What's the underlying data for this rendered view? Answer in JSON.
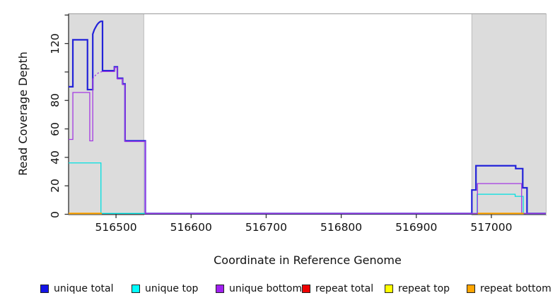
{
  "chart_data": {
    "type": "line",
    "title": "",
    "xlabel": "Coordinate in Reference Genome",
    "ylabel": "Read Coverage Depth",
    "xlim": [
      516436.8,
      517072.6
    ],
    "ylim": [
      0,
      140.9
    ],
    "grid": false,
    "legend_position": "bottom",
    "background_color": "#ffffff",
    "repeat_region_color": "#dcdcdc",
    "repeat_region_border": "#bdbdbd",
    "plot_top_border_color": "#a8a8a8",
    "axis_color": "#333333",
    "repeat_regions": [
      {
        "x1": 516437,
        "x2": 516537
      },
      {
        "x1": 516974,
        "x2": 517073
      }
    ],
    "x_ticks": [
      {
        "v": 516500,
        "label": "516500"
      },
      {
        "v": 516600,
        "label": "516600"
      },
      {
        "v": 516700,
        "label": "516700"
      },
      {
        "v": 516800,
        "label": "516800"
      },
      {
        "v": 516900,
        "label": "516900"
      },
      {
        "v": 517000,
        "label": "517000"
      }
    ],
    "y_ticks": [
      {
        "v": 0,
        "label": "0"
      },
      {
        "v": 20,
        "label": "20"
      },
      {
        "v": 40,
        "label": "40"
      },
      {
        "v": 60,
        "label": "60"
      },
      {
        "v": 80,
        "label": "80"
      },
      {
        "v": 100,
        "label": ""
      },
      {
        "v": 120,
        "label": "120"
      },
      {
        "v": 140,
        "label": ""
      }
    ],
    "series": [
      {
        "name": "unique total",
        "color": "#2323d9",
        "dashed_segment": -1,
        "segments": [
          [
            [
              516436.8,
              89
            ],
            [
              516442.5,
              89
            ],
            [
              516442.5,
              122
            ],
            [
              516462,
              122
            ],
            [
              516462,
              87
            ],
            [
              516469,
              87
            ],
            [
              516469,
              126
            ],
            [
              516471,
              129
            ],
            [
              516473,
              131
            ],
            [
              516475,
              132.8
            ],
            [
              516477,
              134
            ],
            [
              516479,
              134.8
            ],
            [
              516480,
              135
            ],
            [
              516482,
              135
            ],
            [
              516482,
              100.3
            ],
            [
              516497.8,
              100.3
            ],
            [
              516497.8,
              103
            ],
            [
              516501.8,
              103
            ],
            [
              516501.8,
              95
            ],
            [
              516508.8,
              95
            ],
            [
              516508.8,
              91
            ],
            [
              516512,
              91
            ],
            [
              516512,
              51
            ],
            [
              516539,
              51
            ],
            [
              516539,
              0
            ],
            [
              516974,
              0
            ],
            [
              516974,
              16.5
            ],
            [
              516979.5,
              16.5
            ],
            [
              516979.5,
              33.5
            ],
            [
              517032.4,
              33.5
            ],
            [
              517032.4,
              31.5
            ],
            [
              517041.8,
              31.5
            ],
            [
              517041.8,
              18
            ],
            [
              517047.5,
              18
            ],
            [
              517047.5,
              0
            ],
            [
              517072.6,
              0
            ]
          ]
        ]
      },
      {
        "name": "unique top",
        "color": "#00e0e0",
        "dashed_segment": -1,
        "segments": [
          [
            [
              516436.8,
              35.5
            ],
            [
              516479.9,
              35.5
            ],
            [
              516479.9,
              0
            ],
            [
              516981,
              0
            ],
            [
              516981,
              13.5
            ],
            [
              517031.7,
              13.5
            ],
            [
              517031.7,
              12
            ],
            [
              517042.5,
              12
            ],
            [
              517042.5,
              0
            ],
            [
              517072.6,
              0
            ]
          ]
        ]
      },
      {
        "name": "unique bottom",
        "color": "#a43ae2",
        "dashed_segment": 1,
        "segments": [
          [
            [
              516436.8,
              52
            ],
            [
              516442.5,
              52
            ],
            [
              516442.5,
              85
            ],
            [
              516465,
              85
            ],
            [
              516465,
              51
            ],
            [
              516469,
              51
            ],
            [
              516469,
              94.5
            ]
          ],
          [
            [
              516469,
              94.5
            ],
            [
              516471,
              96
            ],
            [
              516473,
              97.3
            ],
            [
              516475,
              98.2
            ],
            [
              516477,
              98.9
            ],
            [
              516479.5,
              99.4
            ],
            [
              516482,
              99.7
            ]
          ],
          [
            [
              516482,
              99.7
            ],
            [
              516497.8,
              99.7
            ],
            [
              516497.8,
              102.5
            ],
            [
              516501.8,
              102.5
            ],
            [
              516501.8,
              94.5
            ],
            [
              516508.8,
              94.5
            ],
            [
              516508.8,
              90.5
            ],
            [
              516512,
              90.5
            ],
            [
              516512,
              50.5
            ],
            [
              516539,
              50.5
            ],
            [
              516539,
              0
            ],
            [
              516981.5,
              0
            ],
            [
              516981.5,
              21
            ],
            [
              517040.3,
              21
            ],
            [
              517040.3,
              0
            ],
            [
              517072.6,
              0
            ]
          ]
        ]
      },
      {
        "name": "repeat total",
        "color": "#ee0000",
        "dashed_segment": -1,
        "segments": [
          [
            [
              516436.8,
              0
            ],
            [
              516481,
              0
            ]
          ],
          [
            [
              516982,
              0
            ],
            [
              517043,
              0
            ]
          ]
        ]
      },
      {
        "name": "repeat top",
        "color": "#ffff00",
        "dashed_segment": -1,
        "segments": [
          [
            [
              516436.8,
              0
            ],
            [
              516481,
              0
            ]
          ],
          [
            [
              516982,
              0
            ],
            [
              517043,
              0
            ]
          ]
        ]
      },
      {
        "name": "repeat bottom",
        "color": "#ffa500",
        "dashed_segment": -1,
        "segments": [
          [
            [
              516436.8,
              0
            ],
            [
              516481,
              0
            ]
          ],
          [
            [
              516982,
              0
            ],
            [
              517043,
              0
            ]
          ]
        ]
      }
    ],
    "legend": [
      {
        "label": "unique total",
        "color": "#1414e8",
        "x": 57
      },
      {
        "label": "unique top",
        "color": "#00ffff",
        "x": 186
      },
      {
        "label": "unique bottom",
        "color": "#a020f0",
        "x": 305
      },
      {
        "label": "repeat total",
        "color": "#ee0000",
        "x": 427
      },
      {
        "label": "repeat top",
        "color": "#ffff00",
        "x": 544
      },
      {
        "label": "repeat bottom",
        "color": "#ffa500",
        "x": 660
      }
    ]
  },
  "axis_titles": {
    "x": "Coordinate in Reference Genome",
    "y": "Read Coverage Depth"
  }
}
